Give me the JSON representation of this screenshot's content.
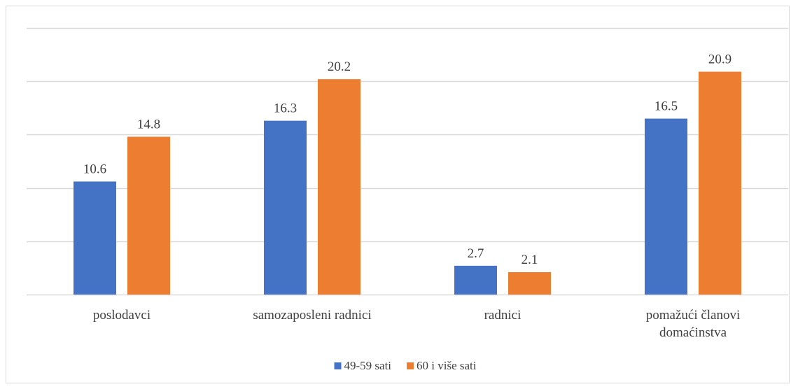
{
  "chart_data": {
    "type": "bar",
    "categories": [
      [
        "poslodavci"
      ],
      [
        "samozaposleni radnici"
      ],
      [
        "radnici"
      ],
      [
        "pomažući članovi",
        "domaćinstva"
      ]
    ],
    "series": [
      {
        "name": "49-59 sati",
        "values": [
          10.6,
          16.3,
          2.7,
          16.5
        ],
        "color": "#4472c4"
      },
      {
        "name": "60 i više sati",
        "values": [
          14.8,
          20.2,
          2.1,
          20.9
        ],
        "color": "#ed7d31"
      }
    ],
    "title": "",
    "xlabel": "",
    "ylabel": "",
    "ylim": [
      0,
      25
    ],
    "grid": true,
    "legend_position": "bottom",
    "gridline_color": "#d9d9d9"
  }
}
